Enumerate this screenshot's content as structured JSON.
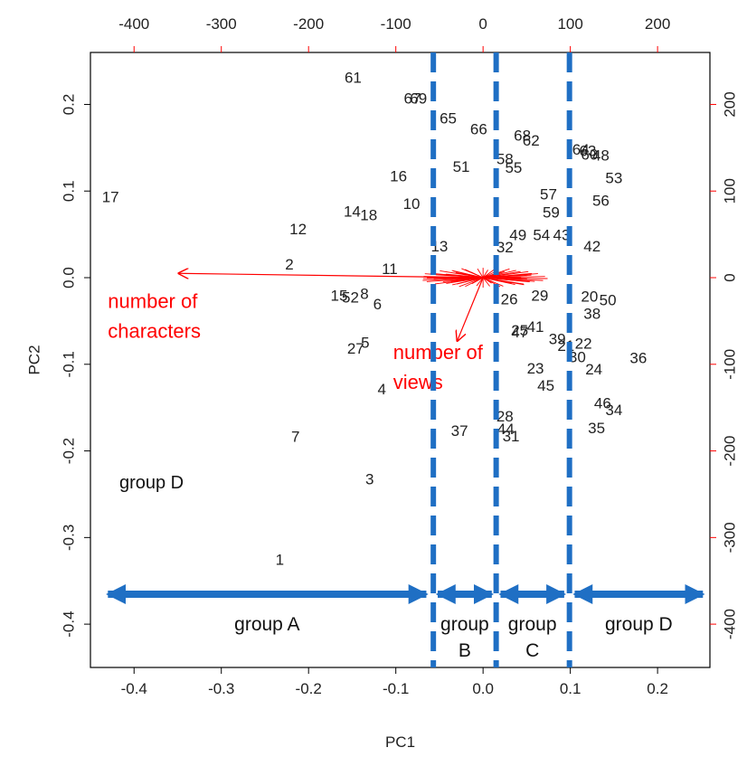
{
  "chart_data": {
    "type": "scatter",
    "title": "",
    "xlabel": "PC1",
    "ylabel": "PC2",
    "xlim": [
      -0.45,
      0.26
    ],
    "ylim": [
      -0.45,
      0.26
    ],
    "x_ticks": [
      -0.4,
      -0.3,
      -0.2,
      -0.1,
      0.0,
      0.1,
      0.2
    ],
    "x_tick_labels": [
      "-0.4",
      "-0.3",
      "-0.2",
      "-0.1",
      "0.0",
      "0.1",
      "0.2"
    ],
    "y_ticks": [
      0.2,
      0.1,
      0.0,
      -0.1,
      -0.2,
      -0.3,
      -0.4
    ],
    "y_tick_labels": [
      "0.2",
      "0.1",
      "0.0",
      "-0.1",
      "-0.2",
      "-0.3",
      "-0.4"
    ],
    "secondary_x_ticks": [
      -400,
      -300,
      -200,
      -100,
      0,
      100,
      200
    ],
    "secondary_x_tick_labels": [
      "-400",
      "-300",
      "-200",
      "-100",
      "0",
      "100",
      "200"
    ],
    "secondary_y_ticks": [
      200,
      100,
      0,
      -100,
      -200,
      -300,
      -400
    ],
    "secondary_y_tick_labels": [
      "200",
      "100",
      "0",
      "-100",
      "-200",
      "-300",
      "-400"
    ],
    "secondary_axis_scale": 1000,
    "grid": false,
    "points": [
      {
        "label": "61",
        "x": -0.149,
        "y": 0.231
      },
      {
        "label": "67",
        "x": -0.081,
        "y": 0.207
      },
      {
        "label": "69",
        "x": -0.074,
        "y": 0.207
      },
      {
        "label": "65",
        "x": -0.04,
        "y": 0.184
      },
      {
        "label": "66",
        "x": -0.005,
        "y": 0.171
      },
      {
        "label": "68",
        "x": 0.045,
        "y": 0.164
      },
      {
        "label": "62",
        "x": 0.055,
        "y": 0.158
      },
      {
        "label": "64",
        "x": 0.112,
        "y": 0.148
      },
      {
        "label": "63",
        "x": 0.12,
        "y": 0.146
      },
      {
        "label": "60",
        "x": 0.122,
        "y": 0.142
      },
      {
        "label": "48",
        "x": 0.135,
        "y": 0.141
      },
      {
        "label": "58",
        "x": 0.025,
        "y": 0.137
      },
      {
        "label": "55",
        "x": 0.035,
        "y": 0.127
      },
      {
        "label": "51",
        "x": -0.025,
        "y": 0.128
      },
      {
        "label": "53",
        "x": 0.15,
        "y": 0.115
      },
      {
        "label": "16",
        "x": -0.097,
        "y": 0.117
      },
      {
        "label": "57",
        "x": 0.075,
        "y": 0.096
      },
      {
        "label": "56",
        "x": 0.135,
        "y": 0.089
      },
      {
        "label": "17",
        "x": -0.427,
        "y": 0.093
      },
      {
        "label": "10",
        "x": -0.082,
        "y": 0.085
      },
      {
        "label": "59",
        "x": 0.078,
        "y": 0.075
      },
      {
        "label": "14",
        "x": -0.15,
        "y": 0.076
      },
      {
        "label": "18",
        "x": -0.131,
        "y": 0.072
      },
      {
        "label": "12",
        "x": -0.212,
        "y": 0.056
      },
      {
        "label": "49",
        "x": 0.04,
        "y": 0.049
      },
      {
        "label": "54",
        "x": 0.067,
        "y": 0.049
      },
      {
        "label": "43",
        "x": 0.09,
        "y": 0.049
      },
      {
        "label": "13",
        "x": -0.05,
        "y": 0.036
      },
      {
        "label": "32",
        "x": 0.025,
        "y": 0.035
      },
      {
        "label": "42",
        "x": 0.125,
        "y": 0.036
      },
      {
        "label": "2",
        "x": -0.222,
        "y": 0.015
      },
      {
        "label": "11",
        "x": -0.107,
        "y": 0.01
      },
      {
        "label": "29",
        "x": 0.065,
        "y": -0.021
      },
      {
        "label": "26",
        "x": 0.03,
        "y": -0.025
      },
      {
        "label": "20",
        "x": 0.122,
        "y": -0.022
      },
      {
        "label": "50",
        "x": 0.143,
        "y": -0.026
      },
      {
        "label": "15",
        "x": -0.165,
        "y": -0.021
      },
      {
        "label": "52",
        "x": -0.152,
        "y": -0.023
      },
      {
        "label": "8",
        "x": -0.136,
        "y": -0.019
      },
      {
        "label": "6",
        "x": -0.121,
        "y": -0.031
      },
      {
        "label": "38",
        "x": 0.125,
        "y": -0.042
      },
      {
        "label": "25",
        "x": 0.042,
        "y": -0.061
      },
      {
        "label": "41",
        "x": 0.06,
        "y": -0.057
      },
      {
        "label": "47",
        "x": 0.042,
        "y": -0.063
      },
      {
        "label": "39",
        "x": 0.085,
        "y": -0.071
      },
      {
        "label": "21",
        "x": 0.095,
        "y": -0.079
      },
      {
        "label": "22",
        "x": 0.115,
        "y": -0.076
      },
      {
        "label": "27",
        "x": -0.146,
        "y": -0.082
      },
      {
        "label": "5",
        "x": -0.135,
        "y": -0.075
      },
      {
        "label": "30",
        "x": 0.108,
        "y": -0.092
      },
      {
        "label": "36",
        "x": 0.178,
        "y": -0.093
      },
      {
        "label": "24",
        "x": 0.127,
        "y": -0.106
      },
      {
        "label": "23",
        "x": 0.06,
        "y": -0.105
      },
      {
        "label": "45",
        "x": 0.072,
        "y": -0.125
      },
      {
        "label": "4",
        "x": -0.116,
        "y": -0.129
      },
      {
        "label": "46",
        "x": 0.137,
        "y": -0.145
      },
      {
        "label": "34",
        "x": 0.15,
        "y": -0.153
      },
      {
        "label": "28",
        "x": 0.025,
        "y": -0.16
      },
      {
        "label": "37",
        "x": -0.027,
        "y": -0.177
      },
      {
        "label": "44",
        "x": 0.026,
        "y": -0.175
      },
      {
        "label": "31",
        "x": 0.032,
        "y": -0.183
      },
      {
        "label": "35",
        "x": 0.13,
        "y": -0.174
      },
      {
        "label": "7",
        "x": -0.215,
        "y": -0.184
      },
      {
        "label": "3",
        "x": -0.13,
        "y": -0.233
      },
      {
        "label": "1",
        "x": -0.233,
        "y": -0.326
      }
    ],
    "arrows": [
      {
        "label_lines": [
          "number of",
          "characters"
        ],
        "x0": 0.0,
        "y0": 0.0,
        "x1": -0.35,
        "y1": 0.005,
        "label_x": -0.43,
        "label_y": -0.035
      },
      {
        "label_lines": [
          "number of",
          "views"
        ],
        "x0": 0.0,
        "y0": 0.0,
        "x1": -0.03,
        "y1": -0.074,
        "label_x": -0.103,
        "label_y": -0.094
      }
    ],
    "boundaries": [
      -0.057,
      0.015,
      0.099
    ],
    "groups": [
      {
        "label_lines": [
          "group A"
        ],
        "x_from": -0.43,
        "x_to": -0.065
      },
      {
        "label_lines": [
          "group",
          "B"
        ],
        "x_from": -0.052,
        "x_to": 0.01
      },
      {
        "label_lines": [
          "group",
          "C"
        ],
        "x_from": 0.02,
        "x_to": 0.093
      },
      {
        "label_lines": [
          "group D"
        ],
        "x_from": 0.105,
        "x_to": 0.252
      }
    ],
    "extra_labels": [
      {
        "text": "group D",
        "x": -0.38,
        "y": -0.237
      }
    ],
    "colors": {
      "points": "#222222",
      "secondary_axis": "#ff0000",
      "loadings": "#ff0000",
      "boundaries": "#1f6fc4",
      "group_arrows": "#1f6fc4"
    }
  }
}
